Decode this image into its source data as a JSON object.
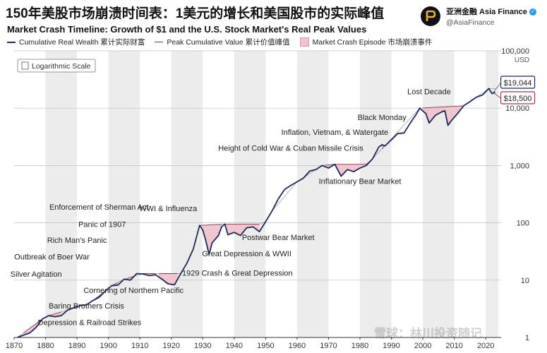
{
  "header": {
    "title": "150年美股市场崩溃时间表：1美元的增长和美国股市的实际峰值",
    "subtitle": "Market Crash Timeline: Growth of $1 and the U.S. Stock Market's Real Peak Values",
    "legend": {
      "wealth": "Cumulative Real Wealth 累计实际财富",
      "peak": "Peak Cumulative Value 累计价值峰值",
      "crash": "Market Crash Episode 市场崩溃事件"
    }
  },
  "brand": {
    "name": "亚洲金融 Asia Finance",
    "handle": "@AsiaFinance"
  },
  "watermark": "雪球：林川投资随记",
  "colors": {
    "wealth": "#1f2a5a",
    "crash_fill": "#efc3cf",
    "crash_stroke": "#a8324f",
    "band": "#ececec"
  },
  "chart_data": {
    "type": "line",
    "scale_note": "Logarithmic Scale",
    "y_scale": "log",
    "y_unit": "USD",
    "ylim": [
      1,
      100000
    ],
    "xlim": [
      1870,
      2024
    ],
    "y_ticks": [
      {
        "value": 1,
        "label": "1"
      },
      {
        "value": 10,
        "label": "10"
      },
      {
        "value": 100,
        "label": "100"
      },
      {
        "value": 1000,
        "label": "1,000"
      },
      {
        "value": 10000,
        "label": "10,000"
      },
      {
        "value": 100000,
        "label": "100,000"
      }
    ],
    "x_ticks": [
      1870,
      1880,
      1890,
      1900,
      1910,
      1920,
      1930,
      1940,
      1950,
      1960,
      1970,
      1980,
      1990,
      2000,
      2010,
      2020
    ],
    "series": {
      "wealth": [
        [
          1871,
          1
        ],
        [
          1873,
          1.1
        ],
        [
          1875,
          1.2
        ],
        [
          1877,
          1.5
        ],
        [
          1879,
          2.1
        ],
        [
          1881,
          2.4
        ],
        [
          1883,
          2.3
        ],
        [
          1885,
          2.4
        ],
        [
          1887,
          3.0
        ],
        [
          1889,
          3.3
        ],
        [
          1891,
          3.6
        ],
        [
          1893,
          3.7
        ],
        [
          1895,
          4.4
        ],
        [
          1897,
          5.0
        ],
        [
          1899,
          6.4
        ],
        [
          1901,
          8.0
        ],
        [
          1903,
          8.2
        ],
        [
          1905,
          10.4
        ],
        [
          1907,
          10.0
        ],
        [
          1909,
          13.0
        ],
        [
          1911,
          12.8
        ],
        [
          1913,
          12.0
        ],
        [
          1915,
          12.4
        ],
        [
          1917,
          10.4
        ],
        [
          1919,
          8.6
        ],
        [
          1921,
          8.3
        ],
        [
          1923,
          13.0
        ],
        [
          1925,
          20.0
        ],
        [
          1927,
          35.0
        ],
        [
          1929,
          90.0
        ],
        [
          1930,
          75.0
        ],
        [
          1931,
          48.0
        ],
        [
          1932,
          28.0
        ],
        [
          1933,
          45.0
        ],
        [
          1935,
          60.0
        ],
        [
          1936,
          85.0
        ],
        [
          1937,
          95.0
        ],
        [
          1938,
          62.0
        ],
        [
          1940,
          68.0
        ],
        [
          1942,
          60.0
        ],
        [
          1944,
          82.0
        ],
        [
          1946,
          85.0
        ],
        [
          1948,
          70.0
        ],
        [
          1950,
          105.0
        ],
        [
          1952,
          160.0
        ],
        [
          1954,
          260.0
        ],
        [
          1956,
          380.0
        ],
        [
          1958,
          450.0
        ],
        [
          1960,
          520.0
        ],
        [
          1962,
          600.0
        ],
        [
          1964,
          800.0
        ],
        [
          1966,
          850.0
        ],
        [
          1968,
          1000.0
        ],
        [
          1970,
          900.0
        ],
        [
          1972,
          1050.0
        ],
        [
          1974,
          650.0
        ],
        [
          1976,
          850.0
        ],
        [
          1978,
          780.0
        ],
        [
          1980,
          900.0
        ],
        [
          1982,
          1000.0
        ],
        [
          1984,
          1300.0
        ],
        [
          1986,
          2100.0
        ],
        [
          1987,
          2300.0
        ],
        [
          1988,
          2200.0
        ],
        [
          1990,
          2800.0
        ],
        [
          1992,
          3600.0
        ],
        [
          1994,
          3700.0
        ],
        [
          1996,
          5500.0
        ],
        [
          1998,
          8000.0
        ],
        [
          1999,
          10000.0
        ],
        [
          2001,
          8000.0
        ],
        [
          2002,
          5500.0
        ],
        [
          2004,
          7500.0
        ],
        [
          2006,
          8600.0
        ],
        [
          2007,
          9000.0
        ],
        [
          2008,
          5000.0
        ],
        [
          2009,
          6000.0
        ],
        [
          2011,
          8000.0
        ],
        [
          2013,
          11000.0
        ],
        [
          2015,
          13000.0
        ],
        [
          2017,
          15500.0
        ],
        [
          2019,
          17000.0
        ],
        [
          2021,
          22000.0
        ],
        [
          2022,
          18000.0
        ],
        [
          2023,
          19044.0
        ]
      ],
      "peak": [
        [
          1871,
          1
        ],
        [
          1879,
          2.1
        ],
        [
          1881,
          2.4
        ],
        [
          1887,
          3.0
        ],
        [
          1891,
          3.6
        ],
        [
          1893,
          3.7
        ],
        [
          1895,
          4.4
        ],
        [
          1899,
          6.4
        ],
        [
          1901,
          8.0
        ],
        [
          1905,
          10.4
        ],
        [
          1911,
          13.0
        ],
        [
          1921,
          13.0
        ],
        [
          1923,
          13.0
        ],
        [
          1925,
          20.0
        ],
        [
          1927,
          35.0
        ],
        [
          1929,
          90.0
        ],
        [
          1937,
          95.0
        ],
        [
          1948,
          95.0
        ],
        [
          1950,
          105.0
        ],
        [
          1952,
          160.0
        ],
        [
          1960,
          520.0
        ],
        [
          1968,
          1000.0
        ],
        [
          1972,
          1050.0
        ],
        [
          1982,
          1050.0
        ],
        [
          1984,
          1300.0
        ],
        [
          1999,
          10000.0
        ],
        [
          2013,
          11000.0
        ],
        [
          2021,
          22000.0
        ],
        [
          2023,
          22000.0
        ]
      ]
    },
    "crashes": [
      {
        "start": 1873,
        "end": 1879
      },
      {
        "start": 1881,
        "end": 1885
      },
      {
        "start": 1890,
        "end": 1891
      },
      {
        "start": 1893,
        "end": 1895
      },
      {
        "start": 1896,
        "end": 1898
      },
      {
        "start": 1901,
        "end": 1903
      },
      {
        "start": 1906,
        "end": 1908
      },
      {
        "start": 1910,
        "end": 1915
      },
      {
        "start": 1916,
        "end": 1922
      },
      {
        "start": 1929,
        "end": 1936
      },
      {
        "start": 1937,
        "end": 1948
      },
      {
        "start": 1969,
        "end": 1983
      },
      {
        "start": 1987,
        "end": 1988
      },
      {
        "start": 2000,
        "end": 2013
      }
    ],
    "annotations": [
      {
        "label": "Lost Decade",
        "x": 2002,
        "y": 17500
      },
      {
        "label": "Black Monday",
        "x": 1987,
        "y": 6200
      },
      {
        "label": "Inflation, Vietnam, & Watergate",
        "x": 1972,
        "y": 3400
      },
      {
        "label": "Height of Cold War & Cuban Missile Crisis",
        "x": 1958,
        "y": 1800
      },
      {
        "label": "Inflationary Bear Market",
        "x": 1980,
        "y": 480
      },
      {
        "label": "WWI & Influenza",
        "x": 1919,
        "y": 160
      },
      {
        "label": "Enforcement of Sherman Act",
        "x": 1897,
        "y": 170
      },
      {
        "label": "Panic of 1907",
        "x": 1898,
        "y": 85
      },
      {
        "label": "Postwar Bear Market",
        "x": 1954,
        "y": 50
      },
      {
        "label": "Rich Man's Panic",
        "x": 1890,
        "y": 45
      },
      {
        "label": "Great Depression & WWII",
        "x": 1944,
        "y": 26
      },
      {
        "label": "Outbreak of Boer War",
        "x": 1882,
        "y": 23
      },
      {
        "label": "1929 Crash & Great Depression",
        "x": 1941,
        "y": 12
      },
      {
        "label": "Silver Agitation",
        "x": 1877,
        "y": 11.5
      },
      {
        "label": "Cornering of Northern Pacific",
        "x": 1908,
        "y": 6
      },
      {
        "label": "Baring Brothers Crisis",
        "x": 1893,
        "y": 3.2
      },
      {
        "label": "Depression & Railroad Strikes",
        "x": 1894,
        "y": 1.65
      }
    ],
    "end_values": [
      {
        "label": "$19,044",
        "value": 19044,
        "style": "wealth"
      },
      {
        "label": "$18,500",
        "value": 18500,
        "style": "crash"
      }
    ]
  }
}
